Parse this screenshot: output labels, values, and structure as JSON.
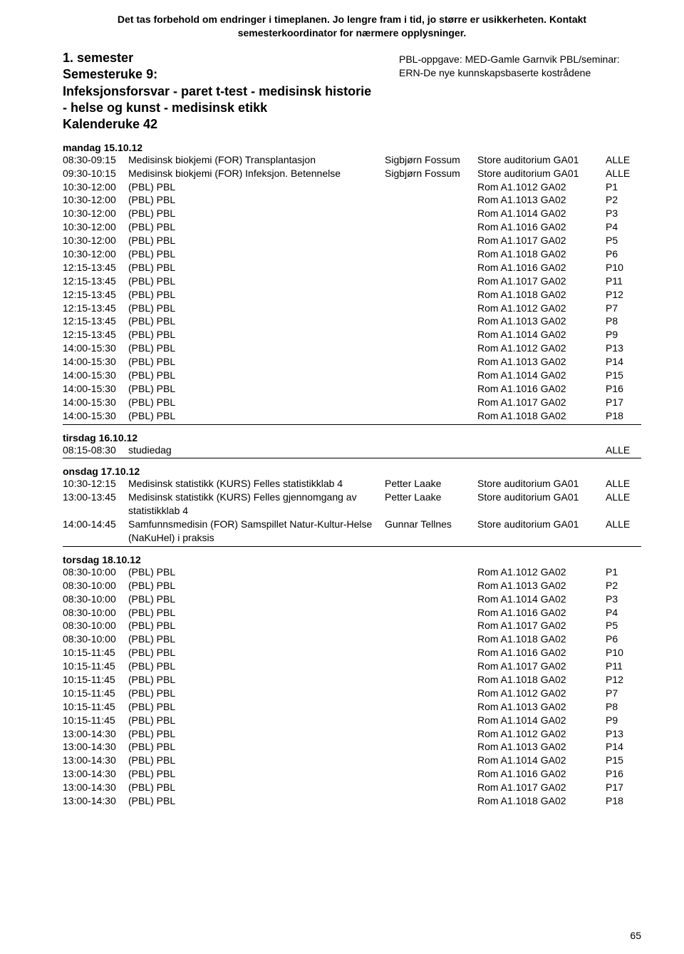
{
  "disclaimer": "Det tas forbehold om endringer i timeplanen. Jo lengre fram i tid, jo større er usikkerheten. Kontakt semesterkoordinator for nærmere opplysninger.",
  "title_block": "1. semester\nSemesteruke 9:\nInfeksjonsforsvar - paret t-test - medisinsk historie - helse og kunst - medisinsk etikk\nKalenderuke 42",
  "right_block": "PBL-oppgave: MED-Gamle Garnvik PBL/seminar: ERN-De nye kunnskapsbaserte kostrådene",
  "days": [
    {
      "label": "mandag 15.10.12",
      "rows": [
        {
          "time": "08:30-09:15",
          "desc": "Medisinsk biokjemi (FOR) Transplantasjon",
          "inst": "Sigbjørn Fossum",
          "room": "Store auditorium GA01",
          "grp": "ALLE"
        },
        {
          "time": "09:30-10:15",
          "desc": "Medisinsk biokjemi (FOR) Infeksjon. Betennelse",
          "inst": "Sigbjørn Fossum",
          "room": "Store auditorium GA01",
          "grp": "ALLE"
        },
        {
          "time": "10:30-12:00",
          "desc": "(PBL) PBL",
          "inst": "",
          "room": "Rom A1.1012 GA02",
          "grp": "P1"
        },
        {
          "time": "10:30-12:00",
          "desc": "(PBL) PBL",
          "inst": "",
          "room": "Rom A1.1013 GA02",
          "grp": "P2"
        },
        {
          "time": "10:30-12:00",
          "desc": "(PBL) PBL",
          "inst": "",
          "room": "Rom A1.1014 GA02",
          "grp": "P3"
        },
        {
          "time": "10:30-12:00",
          "desc": "(PBL) PBL",
          "inst": "",
          "room": "Rom A1.1016 GA02",
          "grp": "P4"
        },
        {
          "time": "10:30-12:00",
          "desc": "(PBL) PBL",
          "inst": "",
          "room": "Rom A1.1017 GA02",
          "grp": "P5"
        },
        {
          "time": "10:30-12:00",
          "desc": "(PBL) PBL",
          "inst": "",
          "room": "Rom A1.1018 GA02",
          "grp": "P6"
        },
        {
          "time": "12:15-13:45",
          "desc": "(PBL) PBL",
          "inst": "",
          "room": "Rom A1.1016 GA02",
          "grp": "P10"
        },
        {
          "time": "12:15-13:45",
          "desc": "(PBL) PBL",
          "inst": "",
          "room": "Rom A1.1017 GA02",
          "grp": "P11"
        },
        {
          "time": "12:15-13:45",
          "desc": "(PBL) PBL",
          "inst": "",
          "room": "Rom A1.1018 GA02",
          "grp": "P12"
        },
        {
          "time": "12:15-13:45",
          "desc": "(PBL) PBL",
          "inst": "",
          "room": "Rom A1.1012 GA02",
          "grp": "P7"
        },
        {
          "time": "12:15-13:45",
          "desc": "(PBL) PBL",
          "inst": "",
          "room": "Rom A1.1013 GA02",
          "grp": "P8"
        },
        {
          "time": "12:15-13:45",
          "desc": "(PBL) PBL",
          "inst": "",
          "room": "Rom A1.1014 GA02",
          "grp": "P9"
        },
        {
          "time": "14:00-15:30",
          "desc": "(PBL) PBL",
          "inst": "",
          "room": "Rom A1.1012 GA02",
          "grp": "P13"
        },
        {
          "time": "14:00-15:30",
          "desc": "(PBL) PBL",
          "inst": "",
          "room": "Rom A1.1013 GA02",
          "grp": "P14"
        },
        {
          "time": "14:00-15:30",
          "desc": "(PBL) PBL",
          "inst": "",
          "room": "Rom A1.1014 GA02",
          "grp": "P15"
        },
        {
          "time": "14:00-15:30",
          "desc": "(PBL) PBL",
          "inst": "",
          "room": "Rom A1.1016 GA02",
          "grp": "P16"
        },
        {
          "time": "14:00-15:30",
          "desc": "(PBL) PBL",
          "inst": "",
          "room": "Rom A1.1017 GA02",
          "grp": "P17"
        },
        {
          "time": "14:00-15:30",
          "desc": "(PBL) PBL",
          "inst": "",
          "room": "Rom A1.1018 GA02",
          "grp": "P18"
        }
      ]
    },
    {
      "label": "tirsdag 16.10.12",
      "rows": [
        {
          "time": "08:15-08:30",
          "desc": "studiedag",
          "inst": "",
          "room": "",
          "grp": "ALLE"
        }
      ]
    },
    {
      "label": "onsdag 17.10.12",
      "rows": [
        {
          "time": "10:30-12:15",
          "desc": "Medisinsk statistikk (KURS) Felles statistikklab 4",
          "inst": "Petter Laake",
          "room": "Store auditorium GA01",
          "grp": "ALLE"
        },
        {
          "time": "13:00-13:45",
          "desc": "Medisinsk statistikk (KURS) Felles gjennomgang av statistikklab 4",
          "inst": "Petter Laake",
          "room": "Store auditorium GA01",
          "grp": "ALLE"
        },
        {
          "time": "14:00-14:45",
          "desc": "Samfunnsmedisin (FOR) Samspillet Natur-Kultur-Helse (NaKuHel) i praksis",
          "inst": "Gunnar Tellnes",
          "room": "Store auditorium GA01",
          "grp": "ALLE"
        }
      ]
    },
    {
      "label": "torsdag 18.10.12",
      "rows": [
        {
          "time": "08:30-10:00",
          "desc": "(PBL) PBL",
          "inst": "",
          "room": "Rom A1.1012 GA02",
          "grp": "P1"
        },
        {
          "time": "08:30-10:00",
          "desc": "(PBL) PBL",
          "inst": "",
          "room": "Rom A1.1013 GA02",
          "grp": "P2"
        },
        {
          "time": "08:30-10:00",
          "desc": "(PBL) PBL",
          "inst": "",
          "room": "Rom A1.1014 GA02",
          "grp": "P3"
        },
        {
          "time": "08:30-10:00",
          "desc": "(PBL) PBL",
          "inst": "",
          "room": "Rom A1.1016 GA02",
          "grp": "P4"
        },
        {
          "time": "08:30-10:00",
          "desc": "(PBL) PBL",
          "inst": "",
          "room": "Rom A1.1017 GA02",
          "grp": "P5"
        },
        {
          "time": "08:30-10:00",
          "desc": "(PBL) PBL",
          "inst": "",
          "room": "Rom A1.1018 GA02",
          "grp": "P6"
        },
        {
          "time": "10:15-11:45",
          "desc": "(PBL) PBL",
          "inst": "",
          "room": "Rom A1.1016 GA02",
          "grp": "P10"
        },
        {
          "time": "10:15-11:45",
          "desc": "(PBL) PBL",
          "inst": "",
          "room": "Rom A1.1017 GA02",
          "grp": "P11"
        },
        {
          "time": "10:15-11:45",
          "desc": "(PBL) PBL",
          "inst": "",
          "room": "Rom A1.1018 GA02",
          "grp": "P12"
        },
        {
          "time": "10:15-11:45",
          "desc": "(PBL) PBL",
          "inst": "",
          "room": "Rom A1.1012 GA02",
          "grp": "P7"
        },
        {
          "time": "10:15-11:45",
          "desc": "(PBL) PBL",
          "inst": "",
          "room": "Rom A1.1013 GA02",
          "grp": "P8"
        },
        {
          "time": "10:15-11:45",
          "desc": "(PBL) PBL",
          "inst": "",
          "room": "Rom A1.1014 GA02",
          "grp": "P9"
        },
        {
          "time": "13:00-14:30",
          "desc": "(PBL) PBL",
          "inst": "",
          "room": "Rom A1.1012 GA02",
          "grp": "P13"
        },
        {
          "time": "13:00-14:30",
          "desc": "(PBL) PBL",
          "inst": "",
          "room": "Rom A1.1013 GA02",
          "grp": "P14"
        },
        {
          "time": "13:00-14:30",
          "desc": "(PBL) PBL",
          "inst": "",
          "room": "Rom A1.1014 GA02",
          "grp": "P15"
        },
        {
          "time": "13:00-14:30",
          "desc": "(PBL) PBL",
          "inst": "",
          "room": "Rom A1.1016 GA02",
          "grp": "P16"
        },
        {
          "time": "13:00-14:30",
          "desc": "(PBL) PBL",
          "inst": "",
          "room": "Rom A1.1017 GA02",
          "grp": "P17"
        },
        {
          "time": "13:00-14:30",
          "desc": "(PBL) PBL",
          "inst": "",
          "room": "Rom A1.1018 GA02",
          "grp": "P18"
        }
      ]
    }
  ],
  "page_number": "65"
}
